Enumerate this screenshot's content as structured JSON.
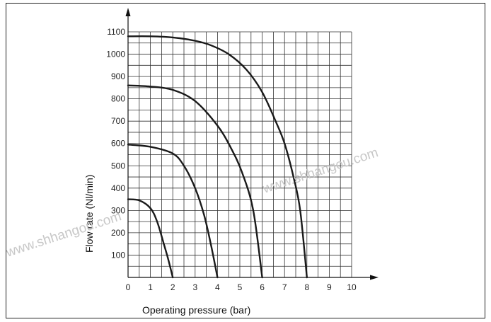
{
  "chart_data": {
    "type": "line",
    "title": "",
    "xlabel": "Operating pressure (bar)",
    "ylabel": "Flow rate (Nl/min)",
    "xlim": [
      0,
      10
    ],
    "ylim": [
      0,
      1100
    ],
    "x_ticks": [
      "0",
      "1",
      "2",
      "3",
      "4",
      "5",
      "6",
      "7",
      "8",
      "9",
      "10"
    ],
    "y_ticks": [
      "100",
      "200",
      "300",
      "400",
      "500",
      "600",
      "700",
      "800",
      "900",
      "1000",
      "1100"
    ],
    "grid": true,
    "series": [
      {
        "points": [
          [
            0,
            350
          ],
          [
            0.5,
            345
          ],
          [
            1,
            310
          ],
          [
            1.3,
            250
          ],
          [
            1.6,
            150
          ],
          [
            1.8,
            80
          ],
          [
            2,
            0
          ]
        ]
      },
      {
        "points": [
          [
            0,
            595
          ],
          [
            1,
            585
          ],
          [
            2,
            555
          ],
          [
            2.5,
            500
          ],
          [
            3,
            400
          ],
          [
            3.4,
            280
          ],
          [
            3.7,
            150
          ],
          [
            4,
            0
          ]
        ]
      },
      {
        "points": [
          [
            0,
            860
          ],
          [
            1,
            855
          ],
          [
            2,
            840
          ],
          [
            3,
            790
          ],
          [
            4,
            680
          ],
          [
            4.6,
            580
          ],
          [
            5.1,
            470
          ],
          [
            5.6,
            300
          ],
          [
            6,
            0
          ]
        ]
      },
      {
        "points": [
          [
            0,
            1080
          ],
          [
            1,
            1080
          ],
          [
            2,
            1075
          ],
          [
            3,
            1060
          ],
          [
            3.7,
            1040
          ],
          [
            4.5,
            1000
          ],
          [
            5.3,
            930
          ],
          [
            6,
            830
          ],
          [
            6.6,
            700
          ],
          [
            7,
            600
          ],
          [
            7.4,
            450
          ],
          [
            7.7,
            300
          ],
          [
            8,
            0
          ]
        ]
      }
    ],
    "watermarks": [
      "www.shhangou.com",
      "www.shhangou.com"
    ]
  },
  "colors": {
    "line": "#1a1a1a",
    "grid": "#333333",
    "watermark": "#c8c8c8"
  }
}
